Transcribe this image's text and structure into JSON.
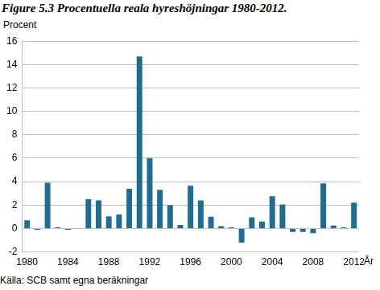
{
  "chart_data": {
    "type": "bar",
    "title": "Figure 5.3 Procentuella reala hyreshöjningar 1980-2012.",
    "ylabel": "Procent",
    "xlabel": "År",
    "source": "Källa: SCB samt egna beräkningar",
    "categories": [
      "1980",
      null,
      null,
      null,
      "1984",
      null,
      null,
      null,
      "1988",
      null,
      null,
      null,
      "1992",
      null,
      null,
      null,
      "1996",
      null,
      null,
      null,
      "2000",
      null,
      null,
      null,
      "2004",
      null,
      null,
      null,
      "2008",
      null,
      null,
      null,
      "2012"
    ],
    "values": [
      0.7,
      -0.1,
      3.9,
      0.1,
      -0.1,
      0.0,
      2.5,
      2.4,
      1.05,
      1.2,
      3.4,
      14.7,
      6.0,
      3.3,
      2.0,
      0.3,
      3.65,
      2.4,
      1.0,
      0.2,
      0.1,
      -1.2,
      0.95,
      0.6,
      2.75,
      2.05,
      -0.3,
      -0.3,
      -0.4,
      3.85,
      0.25,
      0.1,
      2.2
    ],
    "color": "#1f6e91",
    "ylim": [
      -2,
      16
    ],
    "yticks": [
      -2,
      0,
      2,
      4,
      6,
      8,
      10,
      12,
      14,
      16
    ],
    "grid": true
  }
}
